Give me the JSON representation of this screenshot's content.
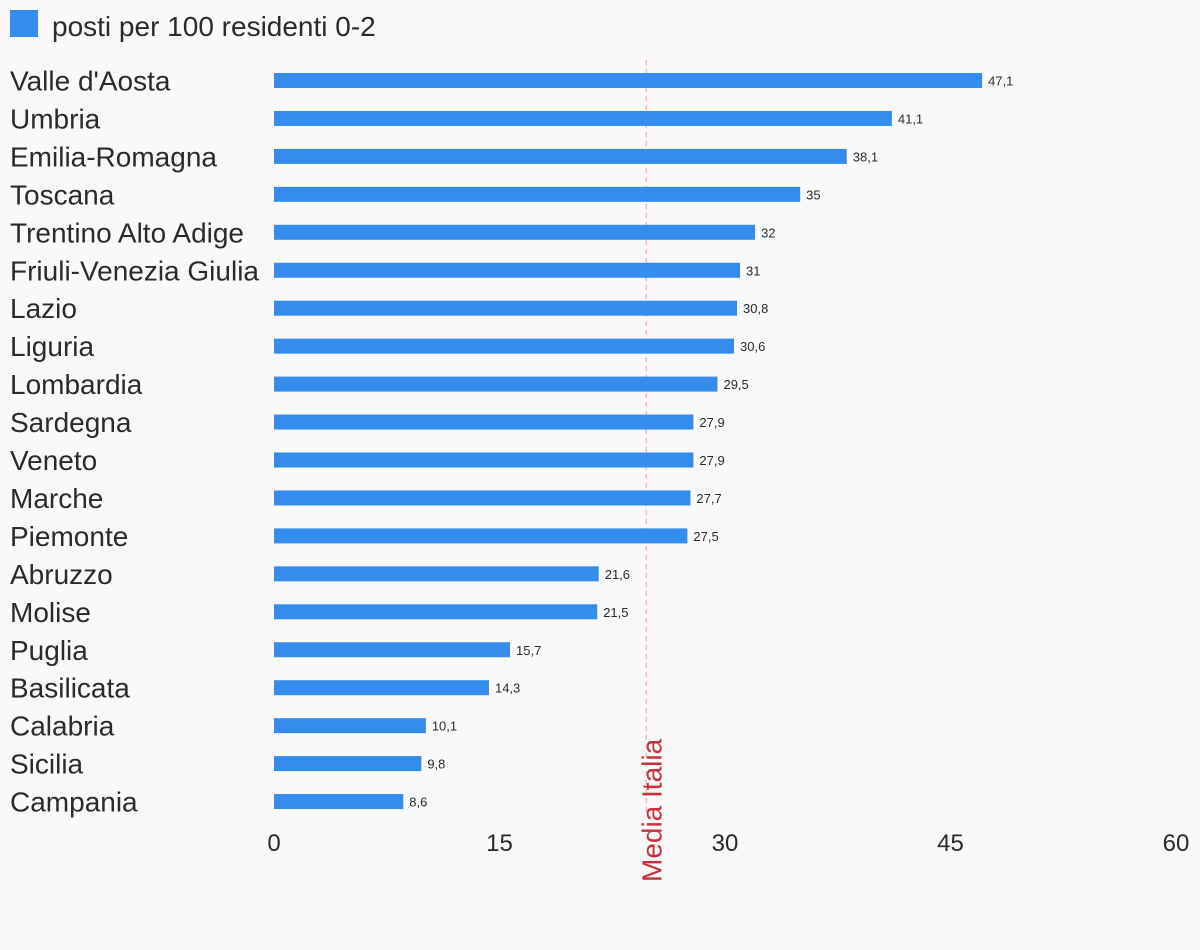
{
  "chart_data": {
    "type": "bar",
    "orientation": "horizontal",
    "legend": {
      "position": "top-left",
      "entries": [
        {
          "name": "posti per 100 residenti 0-2",
          "color": "#348cec"
        }
      ]
    },
    "categories": [
      "Valle d'Aosta",
      "Umbria",
      "Emilia-Romagna",
      "Toscana",
      "Trentino Alto Adige",
      "Friuli-Venezia Giulia",
      "Lazio",
      "Liguria",
      "Lombardia",
      "Sardegna",
      "Veneto",
      "Marche",
      "Piemonte",
      "Abruzzo",
      "Molise",
      "Puglia",
      "Basilicata",
      "Calabria",
      "Sicilia",
      "Campania"
    ],
    "series": [
      {
        "name": "posti per 100 residenti 0-2",
        "color": "#348cec",
        "values": [
          47.1,
          41.1,
          38.1,
          35,
          32,
          31,
          30.8,
          30.6,
          29.5,
          27.9,
          27.9,
          27.7,
          27.5,
          21.6,
          21.5,
          15.7,
          14.3,
          10.1,
          9.8,
          8.6
        ],
        "value_labels": [
          "47,1",
          "41,1",
          "38,1",
          "35",
          "32",
          "31",
          "30,8",
          "30,6",
          "29,5",
          "27,9",
          "27,9",
          "27,7",
          "27,5",
          "21,6",
          "21,5",
          "15,7",
          "14,3",
          "10,1",
          "9,8",
          "8,6"
        ]
      }
    ],
    "xlim": [
      0,
      60
    ],
    "x_ticks": [
      0,
      15,
      30,
      45,
      60
    ],
    "x_tick_labels": [
      "0",
      "15",
      "30",
      "45",
      "60"
    ],
    "grid": false,
    "reference_line": {
      "value": 24.7,
      "label": "Media Italia",
      "color": "#c8303a",
      "line_color": "#f4b6c0",
      "style": "dashed"
    }
  }
}
